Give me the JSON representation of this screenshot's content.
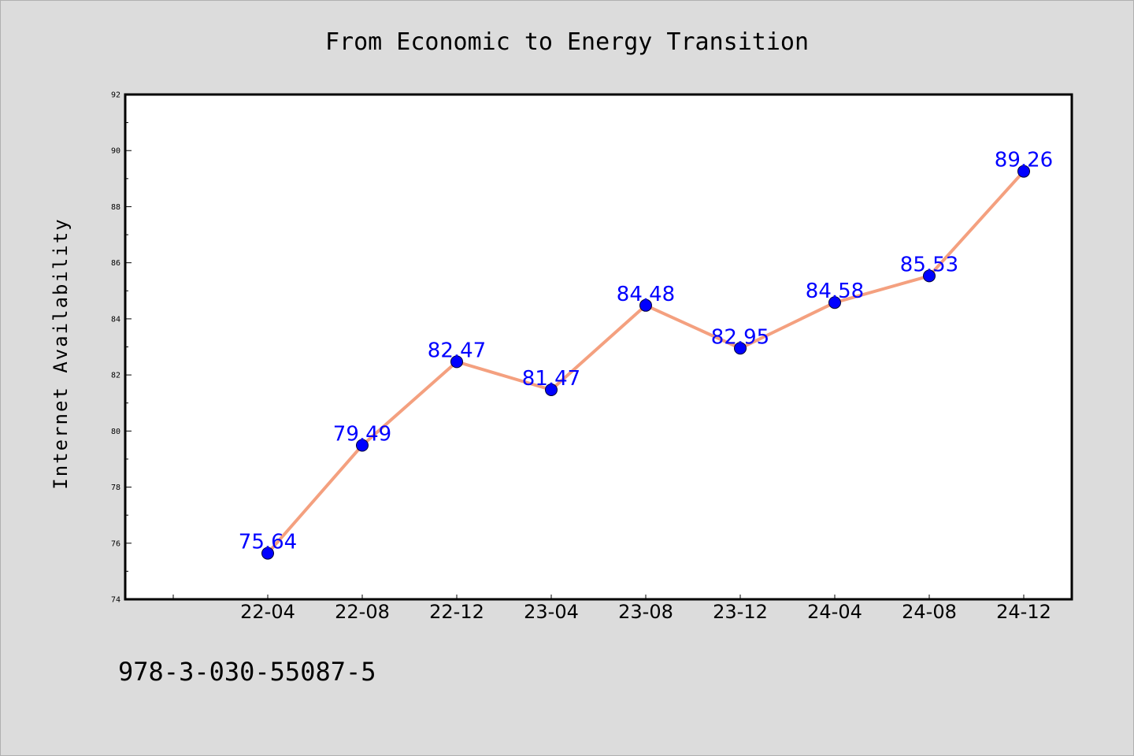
{
  "chart_data": {
    "type": "line",
    "title": "From Economic to Energy Transition",
    "xlabel": "",
    "ylabel": "Internet Availability",
    "categories": [
      "22-04",
      "22-08",
      "22-12",
      "23-04",
      "23-08",
      "23-12",
      "24-04",
      "24-08",
      "24-12"
    ],
    "series": [
      {
        "values": [
          75.64,
          79.49,
          82.47,
          81.47,
          84.48,
          82.95,
          84.58,
          85.53,
          89.26
        ],
        "labels": [
          "75.64",
          "79.49",
          "82.47",
          "81.47",
          "84.48",
          "82.95",
          "84.58",
          "85.53",
          "89.26"
        ]
      }
    ],
    "yticks": [
      "74",
      "76",
      "78",
      "80",
      "82",
      "84",
      "86",
      "88",
      "90",
      "92"
    ],
    "ylim": [
      74,
      92
    ],
    "grid": false,
    "line_color": "#f4a07f",
    "marker_color": "#0000ff",
    "label_color": "#0000ff",
    "background_color": "#dcdcdc",
    "plot_background": "#ffffff"
  },
  "footnote": "978-3-030-55087-5"
}
